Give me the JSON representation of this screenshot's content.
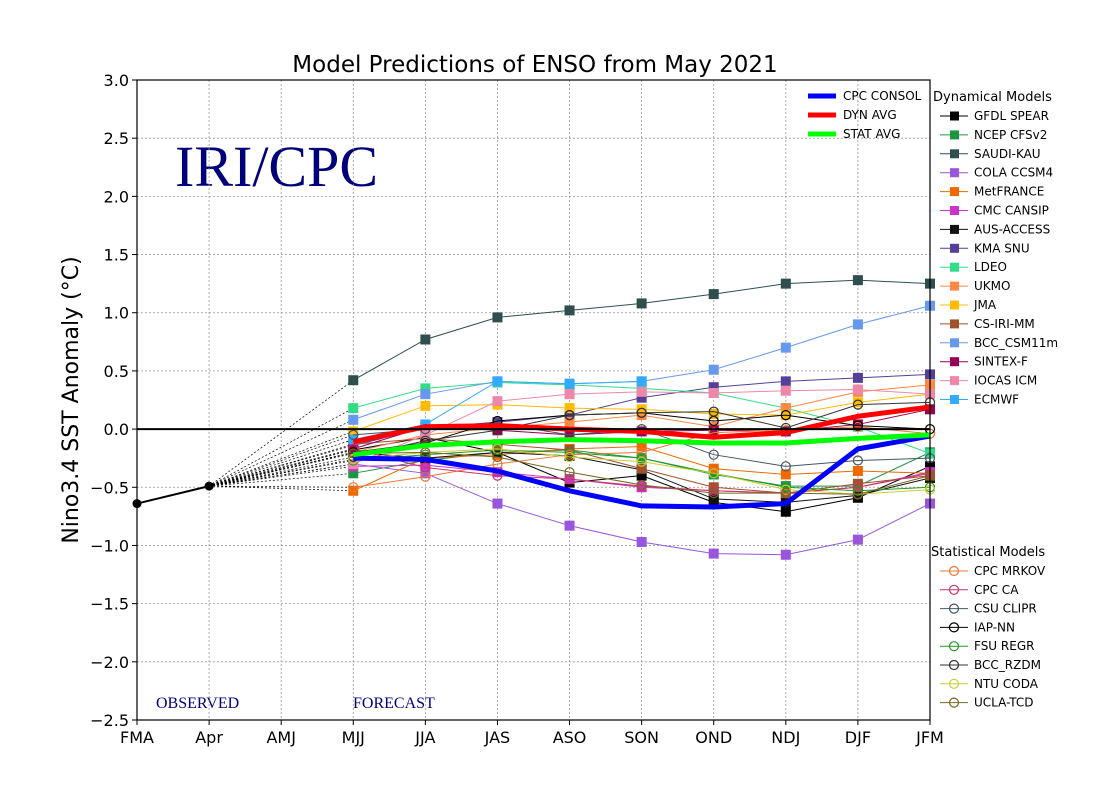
{
  "chart_data": {
    "type": "line",
    "title": "Model Predictions of ENSO from May 2021",
    "ylabel": "Nino3.4 SST Anomaly (°C)",
    "xlabel": "",
    "watermark": "IRI/CPC",
    "observed_label": "OBSERVED",
    "forecast_label": "FORECAST",
    "categories": [
      "FMA",
      "Apr",
      "AMJ",
      "MJJ",
      "JJA",
      "JAS",
      "ASO",
      "SON",
      "OND",
      "NDJ",
      "DJF",
      "JFM"
    ],
    "ylim": [
      -2.5,
      3.0
    ],
    "yticks": [
      -2.5,
      -2.0,
      -1.5,
      -1.0,
      -0.5,
      0.0,
      0.5,
      1.0,
      1.5,
      2.0,
      2.5,
      3.0
    ],
    "ytick_labels": [
      "−2.5",
      "−2.0",
      "−1.5",
      "−1.0",
      "−0.5",
      "0.0",
      "0.5",
      "1.0",
      "1.5",
      "2.0",
      "2.5",
      "3.0"
    ],
    "grid": true,
    "observed": {
      "x": [
        "FMA",
        "Apr"
      ],
      "values": [
        -0.64,
        -0.49
      ],
      "color": "#000000"
    },
    "averages": [
      {
        "name": "CPC CONSOL",
        "color": "#0000ff",
        "values": [
          -0.25,
          -0.26,
          -0.36,
          -0.53,
          -0.66,
          -0.67,
          -0.64,
          -0.17,
          -0.06
        ]
      },
      {
        "name": "DYN AVG",
        "color": "#ff0000",
        "values": [
          -0.11,
          0.02,
          0.03,
          0.0,
          -0.02,
          -0.07,
          -0.03,
          0.11,
          0.19
        ]
      },
      {
        "name": "STAT AVG",
        "color": "#00ff00",
        "values": [
          -0.22,
          -0.14,
          -0.11,
          -0.09,
          -0.1,
          -0.12,
          -0.12,
          -0.08,
          -0.05
        ]
      }
    ],
    "dynamical_title": "Dynamical Models",
    "dynamical": [
      {
        "name": "GFDL SPEAR",
        "color": "#000000",
        "values": [
          -0.18,
          -0.07,
          -0.2,
          -0.46,
          -0.4,
          -0.63,
          -0.71,
          -0.59,
          -0.32
        ]
      },
      {
        "name": "NCEP CFSv2",
        "color": "#1a9641",
        "values": [
          -0.38,
          -0.27,
          -0.2,
          -0.18,
          -0.25,
          -0.39,
          -0.49,
          -0.49,
          -0.2
        ]
      },
      {
        "name": "SAUDI-KAU",
        "color": "#2f4f4f",
        "values": [
          0.42,
          0.77,
          0.96,
          1.02,
          1.08,
          1.16,
          1.25,
          1.28,
          1.25
        ]
      },
      {
        "name": "COLA CCSM4",
        "color": "#9955dd",
        "values": [
          -0.3,
          -0.38,
          -0.64,
          -0.83,
          -0.97,
          -1.07,
          -1.08,
          -0.95,
          -0.64
        ]
      },
      {
        "name": "MetFRANCE",
        "color": "#ee6a00",
        "values": [
          -0.53,
          -0.25,
          -0.22,
          -0.17,
          -0.15,
          -0.34,
          -0.39,
          -0.36,
          -0.38
        ]
      },
      {
        "name": "CMC CANSIP",
        "color": "#cc33cc",
        "values": [
          -0.32,
          -0.31,
          -0.37,
          -0.43,
          -0.5,
          -0.53,
          -0.55,
          -0.5,
          -0.37
        ]
      },
      {
        "name": "AUS-ACCESS",
        "color": "#111111",
        "values": [
          -0.2,
          -0.25,
          -0.2,
          -0.23,
          -0.35,
          -0.6,
          -0.63,
          -0.57,
          -0.42
        ]
      },
      {
        "name": "KMA SNU",
        "color": "#553f99",
        "values": [
          -0.14,
          0.01,
          0.06,
          0.12,
          0.27,
          0.36,
          0.41,
          0.44,
          0.47
        ]
      },
      {
        "name": "LDEO",
        "color": "#33dd88",
        "values": [
          0.18,
          0.35,
          0.4,
          0.38,
          0.35,
          0.31,
          0.18,
          0.02,
          -0.21
        ]
      },
      {
        "name": "UKMO",
        "color": "#ff8844",
        "values": [
          -0.2,
          -0.05,
          0.01,
          0.06,
          0.12,
          0.02,
          0.18,
          0.32,
          0.38
        ]
      },
      {
        "name": "JMA",
        "color": "#ffbb00",
        "values": [
          -0.02,
          0.2,
          0.21,
          0.18,
          0.17,
          0.13,
          0.12,
          0.23,
          0.3
        ]
      },
      {
        "name": "CS-IRI-MM",
        "color": "#a0522d",
        "values": [
          -0.13,
          -0.08,
          -0.13,
          -0.18,
          -0.34,
          -0.5,
          -0.55,
          -0.47,
          -0.4
        ]
      },
      {
        "name": "BCC_CSM11m",
        "color": "#6699ee",
        "values": [
          0.08,
          0.3,
          0.41,
          0.39,
          0.41,
          0.51,
          0.7,
          0.9,
          1.06
        ]
      },
      {
        "name": "SINTEX-F",
        "color": "#990055",
        "values": [
          -0.17,
          0.02,
          -0.01,
          -0.05,
          -0.02,
          -0.01,
          -0.02,
          0.04,
          0.17
        ]
      },
      {
        "name": "IOCAS ICM",
        "color": "#ee88aa",
        "values": [
          -0.3,
          -0.05,
          0.24,
          0.3,
          0.32,
          0.31,
          0.33,
          0.34,
          0.3
        ]
      },
      {
        "name": "ECMWF",
        "color": "#33aaff",
        "values": [
          -0.09,
          0.04,
          0.41,
          0.39,
          0.41
        ]
      }
    ],
    "statistical_title": "Statistical Models",
    "statistical": [
      {
        "name": "CPC MRKOV",
        "color": "#ee7733",
        "values": [
          -0.5,
          -0.41,
          -0.3,
          -0.22,
          -0.2,
          -0.03,
          -0.01,
          0.02,
          -0.04
        ]
      },
      {
        "name": "CPC CA",
        "color": "#cc3366",
        "values": [
          -0.17,
          -0.33,
          -0.4,
          -0.43,
          -0.49,
          -0.53,
          -0.55,
          -0.5,
          -0.38
        ]
      },
      {
        "name": "CSU CLIPR",
        "color": "#445566",
        "values": [
          -0.05,
          0.0,
          0.05,
          -0.05,
          0.0,
          -0.22,
          -0.32,
          -0.27,
          -0.25
        ]
      },
      {
        "name": "IAP-NN",
        "color": "#000000",
        "values": [
          -0.2,
          -0.12,
          0.07,
          0.12,
          0.14,
          0.07,
          0.12,
          0.03,
          0.0
        ]
      },
      {
        "name": "FSU REGR",
        "color": "#229922",
        "values": [
          -0.27,
          -0.22,
          -0.18,
          -0.2,
          -0.25,
          -0.38,
          -0.5,
          -0.53,
          -0.5
        ]
      },
      {
        "name": "BCC_RZDM",
        "color": "#333333",
        "values": [
          -0.24,
          -0.1,
          -0.01,
          0.12,
          0.14,
          0.15,
          0.01,
          0.21,
          0.23
        ]
      },
      {
        "name": "NTU CODA",
        "color": "#cccc33",
        "values": [
          -0.26,
          -0.2,
          -0.17,
          -0.24,
          -0.28,
          -0.38,
          -0.52,
          -0.56,
          -0.52
        ]
      },
      {
        "name": "UCLA-TCD",
        "color": "#776622",
        "values": [
          -0.21,
          -0.2,
          -0.24,
          -0.37,
          -0.48,
          -0.55,
          -0.55,
          -0.56,
          -0.4
        ]
      }
    ]
  }
}
